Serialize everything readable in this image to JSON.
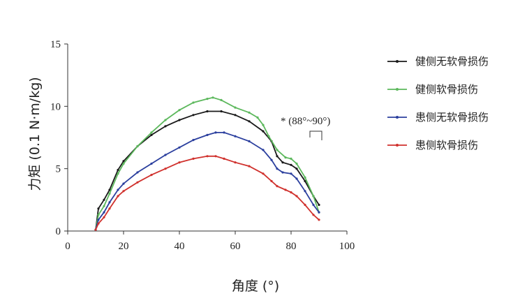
{
  "chart_data": {
    "type": "line",
    "title": "",
    "xlabel": "角度 (°)",
    "ylabel": "力矩 (0.1 N·m/kg)",
    "xlim": [
      0,
      100
    ],
    "ylim": [
      0,
      15
    ],
    "xticks": [
      "0",
      "20",
      "40",
      "60",
      "80",
      "100"
    ],
    "yticks": [
      "0",
      "5",
      "10",
      "15"
    ],
    "grid": false,
    "legend_position": "right",
    "annotation": "* (88°~90°)",
    "series": [
      {
        "name": "健侧无软骨损伤",
        "color": "#1a1a1a",
        "points": [
          [
            10,
            0.1
          ],
          [
            11,
            1.8
          ],
          [
            13,
            2.5
          ],
          [
            15,
            3.3
          ],
          [
            18,
            4.9
          ],
          [
            20,
            5.6
          ],
          [
            25,
            6.8
          ],
          [
            30,
            7.7
          ],
          [
            35,
            8.4
          ],
          [
            40,
            8.9
          ],
          [
            45,
            9.3
          ],
          [
            50,
            9.6
          ],
          [
            55,
            9.6
          ],
          [
            60,
            9.3
          ],
          [
            65,
            8.8
          ],
          [
            70,
            8.0
          ],
          [
            73,
            7.2
          ],
          [
            75,
            6.0
          ],
          [
            77,
            5.5
          ],
          [
            80,
            5.3
          ],
          [
            82,
            5.0
          ],
          [
            85,
            4.0
          ],
          [
            88,
            2.8
          ],
          [
            90,
            2.1
          ]
        ]
      },
      {
        "name": "健侧软骨损伤",
        "color": "#5cb85c",
        "points": [
          [
            10,
            0.1
          ],
          [
            11,
            1.3
          ],
          [
            13,
            2.0
          ],
          [
            15,
            3.0
          ],
          [
            18,
            4.6
          ],
          [
            20,
            5.4
          ],
          [
            25,
            6.8
          ],
          [
            30,
            7.9
          ],
          [
            35,
            8.9
          ],
          [
            40,
            9.7
          ],
          [
            45,
            10.3
          ],
          [
            50,
            10.6
          ],
          [
            52,
            10.7
          ],
          [
            55,
            10.5
          ],
          [
            60,
            9.9
          ],
          [
            65,
            9.5
          ],
          [
            68,
            9.1
          ],
          [
            70,
            8.5
          ],
          [
            72,
            7.6
          ],
          [
            75,
            6.5
          ],
          [
            78,
            5.9
          ],
          [
            80,
            5.8
          ],
          [
            82,
            5.4
          ],
          [
            85,
            4.3
          ],
          [
            88,
            2.8
          ],
          [
            90,
            1.5
          ]
        ]
      },
      {
        "name": "患侧无软骨损伤",
        "color": "#2b3f9e",
        "points": [
          [
            10,
            0.1
          ],
          [
            11,
            0.9
          ],
          [
            13,
            1.5
          ],
          [
            15,
            2.3
          ],
          [
            18,
            3.3
          ],
          [
            20,
            3.8
          ],
          [
            25,
            4.7
          ],
          [
            30,
            5.4
          ],
          [
            35,
            6.1
          ],
          [
            40,
            6.7
          ],
          [
            45,
            7.3
          ],
          [
            50,
            7.7
          ],
          [
            53,
            7.9
          ],
          [
            56,
            7.9
          ],
          [
            60,
            7.6
          ],
          [
            65,
            7.2
          ],
          [
            70,
            6.5
          ],
          [
            73,
            5.7
          ],
          [
            75,
            5.0
          ],
          [
            77,
            4.7
          ],
          [
            80,
            4.6
          ],
          [
            82,
            4.2
          ],
          [
            85,
            3.2
          ],
          [
            88,
            2.1
          ],
          [
            90,
            1.5
          ]
        ]
      },
      {
        "name": "患侧软骨损伤",
        "color": "#d0312d",
        "points": [
          [
            10,
            0.1
          ],
          [
            11,
            0.6
          ],
          [
            13,
            1.1
          ],
          [
            15,
            1.8
          ],
          [
            18,
            2.8
          ],
          [
            20,
            3.2
          ],
          [
            25,
            3.9
          ],
          [
            30,
            4.5
          ],
          [
            35,
            5.0
          ],
          [
            40,
            5.5
          ],
          [
            45,
            5.8
          ],
          [
            50,
            6.0
          ],
          [
            53,
            6.0
          ],
          [
            56,
            5.8
          ],
          [
            60,
            5.5
          ],
          [
            65,
            5.2
          ],
          [
            70,
            4.6
          ],
          [
            73,
            4.0
          ],
          [
            75,
            3.6
          ],
          [
            78,
            3.3
          ],
          [
            80,
            3.1
          ],
          [
            82,
            2.8
          ],
          [
            85,
            2.1
          ],
          [
            88,
            1.3
          ],
          [
            90,
            0.9
          ]
        ]
      }
    ]
  }
}
